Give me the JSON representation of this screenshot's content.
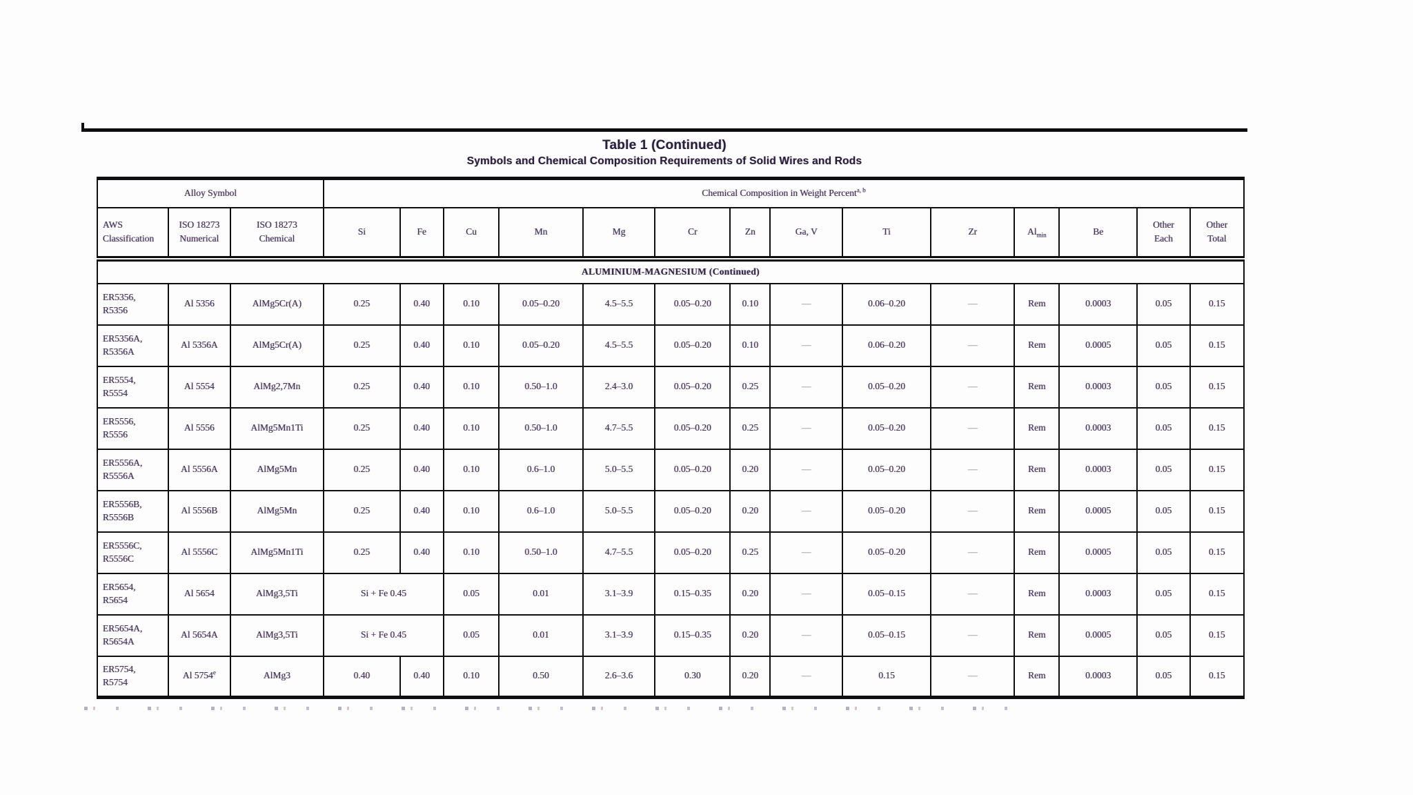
{
  "colors": {
    "ink": "#3e3556",
    "title_ink": "#27203a",
    "border": "#0e0e10",
    "dim_dash": "#8d93a8",
    "background": "#fdfdfd"
  },
  "title": "Table 1 (Continued)",
  "subtitle": "Symbols and Chemical Composition Requirements of Solid Wires and Rods",
  "table": {
    "group_headers": {
      "alloy_symbol": "Alloy Symbol",
      "chemical_composition": "Chemical Composition in Weight Percent",
      "chemical_composition_sup": "a, b"
    },
    "columns": [
      {
        "key": "aws",
        "label": "AWS\nClassification",
        "width": 6.2,
        "align": "left"
      },
      {
        "key": "iso_num",
        "label": "ISO 18273\nNumerical",
        "width": 5.4
      },
      {
        "key": "iso_chem",
        "label": "ISO 18273\nChemical",
        "width": 8.15
      },
      {
        "key": "si",
        "label": "Si",
        "width": 6.65
      },
      {
        "key": "fe",
        "label": "Fe",
        "width": 3.8
      },
      {
        "key": "cu",
        "label": "Cu",
        "width": 4.85
      },
      {
        "key": "mn",
        "label": "Mn",
        "width": 7.3
      },
      {
        "key": "mg",
        "label": "Mg",
        "width": 6.3
      },
      {
        "key": "cr",
        "label": "Cr",
        "width": 6.55
      },
      {
        "key": "zn",
        "label": "Zn",
        "width": 3.5
      },
      {
        "key": "gav",
        "label": "Ga, V",
        "width": 6.3
      },
      {
        "key": "ti",
        "label": "Ti",
        "width": 7.7
      },
      {
        "key": "zr",
        "label": "Zr",
        "width": 7.3
      },
      {
        "key": "al",
        "label": "Al",
        "sub": "min",
        "width": 3.9
      },
      {
        "key": "be",
        "label": "Be",
        "width": 6.8
      },
      {
        "key": "other_each",
        "label": "Other\nEach",
        "width": 4.6
      },
      {
        "key": "other_total",
        "label": "Other\nTotal",
        "width": 4.7
      }
    ],
    "section_header": "ALUMINIUM-MAGNESIUM (Continued)",
    "rows": [
      {
        "aws": "ER5356,\nR5356",
        "iso_num": "Al 5356",
        "iso_chem": "AlMg5Cr(A)",
        "si": "0.25",
        "fe": "0.40",
        "cu": "0.10",
        "mn": "0.05–0.20",
        "mg": "4.5–5.5",
        "cr": "0.05–0.20",
        "zn": "0.10",
        "gav": "—",
        "ti": "0.06–0.20",
        "zr": "—",
        "al": "Rem",
        "be": "0.0003",
        "other_each": "0.05",
        "other_total": "0.15"
      },
      {
        "aws": "ER5356A,\nR5356A",
        "iso_num": "Al 5356A",
        "iso_chem": "AlMg5Cr(A)",
        "si": "0.25",
        "fe": "0.40",
        "cu": "0.10",
        "mn": "0.05–0.20",
        "mg": "4.5–5.5",
        "cr": "0.05–0.20",
        "zn": "0.10",
        "gav": "—",
        "ti": "0.06–0.20",
        "zr": "—",
        "al": "Rem",
        "be": "0.0005",
        "other_each": "0.05",
        "other_total": "0.15"
      },
      {
        "aws": "ER5554,\nR5554",
        "iso_num": "Al 5554",
        "iso_chem": "AlMg2,7Mn",
        "si": "0.25",
        "fe": "0.40",
        "cu": "0.10",
        "mn": "0.50–1.0",
        "mg": "2.4–3.0",
        "cr": "0.05–0.20",
        "zn": "0.25",
        "gav": "—",
        "ti": "0.05–0.20",
        "zr": "—",
        "al": "Rem",
        "be": "0.0003",
        "other_each": "0.05",
        "other_total": "0.15"
      },
      {
        "aws": "ER5556,\nR5556",
        "iso_num": "Al 5556",
        "iso_chem": "AlMg5Mn1Ti",
        "si": "0.25",
        "fe": "0.40",
        "cu": "0.10",
        "mn": "0.50–1.0",
        "mg": "4.7–5.5",
        "cr": "0.05–0.20",
        "zn": "0.25",
        "gav": "—",
        "ti": "0.05–0.20",
        "zr": "—",
        "al": "Rem",
        "be": "0.0003",
        "other_each": "0.05",
        "other_total": "0.15"
      },
      {
        "aws": "ER5556A,\nR5556A",
        "iso_num": "Al 5556A",
        "iso_chem": "AlMg5Mn",
        "si": "0.25",
        "fe": "0.40",
        "cu": "0.10",
        "mn": "0.6–1.0",
        "mg": "5.0–5.5",
        "cr": "0.05–0.20",
        "zn": "0.20",
        "gav": "—",
        "ti": "0.05–0.20",
        "zr": "—",
        "al": "Rem",
        "be": "0.0003",
        "other_each": "0.05",
        "other_total": "0.15"
      },
      {
        "aws": "ER5556B,\nR5556B",
        "iso_num": "Al 5556B",
        "iso_chem": "AlMg5Mn",
        "si": "0.25",
        "fe": "0.40",
        "cu": "0.10",
        "mn": "0.6–1.0",
        "mg": "5.0–5.5",
        "cr": "0.05–0.20",
        "zn": "0.20",
        "gav": "—",
        "ti": "0.05–0.20",
        "zr": "—",
        "al": "Rem",
        "be": "0.0005",
        "other_each": "0.05",
        "other_total": "0.15"
      },
      {
        "aws": "ER5556C,\nR5556C",
        "iso_num": "Al 5556C",
        "iso_chem": "AlMg5Mn1Ti",
        "si": "0.25",
        "fe": "0.40",
        "cu": "0.10",
        "mn": "0.50–1.0",
        "mg": "4.7–5.5",
        "cr": "0.05–0.20",
        "zn": "0.25",
        "gav": "—",
        "ti": "0.05–0.20",
        "zr": "—",
        "al": "Rem",
        "be": "0.0005",
        "other_each": "0.05",
        "other_total": "0.15"
      },
      {
        "aws": "ER5654,\nR5654",
        "iso_num": "Al 5654",
        "iso_chem": "AlMg3,5Ti",
        "si_fe": "Si + Fe 0.45",
        "cu": "0.05",
        "mn": "0.01",
        "mg": "3.1–3.9",
        "cr": "0.15–0.35",
        "zn": "0.20",
        "gav": "—",
        "ti": "0.05–0.15",
        "zr": "—",
        "al": "Rem",
        "be": "0.0003",
        "other_each": "0.05",
        "other_total": "0.15"
      },
      {
        "aws": "ER5654A,\nR5654A",
        "iso_num": "Al 5654A",
        "iso_chem": "AlMg3,5Ti",
        "si_fe": "Si + Fe 0.45",
        "cu": "0.05",
        "mn": "0.01",
        "mg": "3.1–3.9",
        "cr": "0.15–0.35",
        "zn": "0.20",
        "gav": "—",
        "ti": "0.05–0.15",
        "zr": "—",
        "al": "Rem",
        "be": "0.0005",
        "other_each": "0.05",
        "other_total": "0.15"
      },
      {
        "aws": "ER5754,\nR5754",
        "iso_num": "Al 5754",
        "iso_num_sup": "e",
        "iso_chem": "AlMg3",
        "si": "0.40",
        "fe": "0.40",
        "cu": "0.10",
        "mn": "0.50",
        "mg": "2.6–3.6",
        "cr": "0.30",
        "zn": "0.20",
        "gav": "—",
        "ti": "0.15",
        "zr": "—",
        "al": "Rem",
        "be": "0.0003",
        "other_each": "0.05",
        "other_total": "0.15"
      }
    ]
  }
}
